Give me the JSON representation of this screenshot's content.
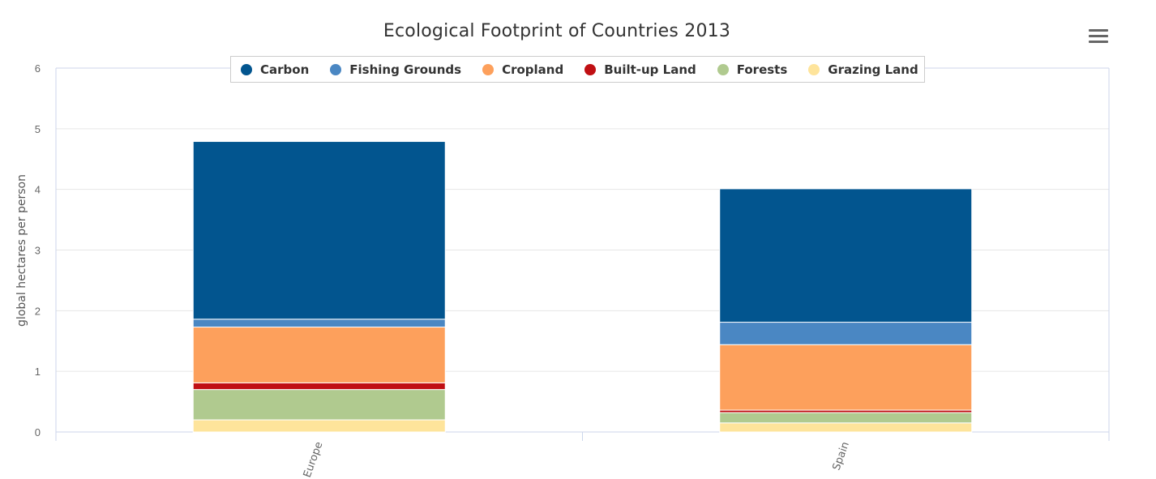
{
  "chart_data": {
    "type": "bar",
    "stacked": true,
    "title": "Ecological Footprint of Countries 2013",
    "xlabel": "",
    "ylabel": "global hectares per person",
    "ylim": [
      0,
      6
    ],
    "yticks": [
      "0",
      "1",
      "2",
      "3",
      "4",
      "5",
      "6"
    ],
    "categories": [
      "Europe",
      "Spain"
    ],
    "legend_position": "top",
    "series": [
      {
        "name": "Carbon",
        "color": "#02558f",
        "values": [
          2.93,
          2.2
        ]
      },
      {
        "name": "Fishing Grounds",
        "color": "#4a87c3",
        "values": [
          0.13,
          0.37
        ]
      },
      {
        "name": "Cropland",
        "color": "#fda05c",
        "values": [
          0.92,
          1.08
        ]
      },
      {
        "name": "Built-up Land",
        "color": "#c00f13",
        "values": [
          0.11,
          0.04
        ]
      },
      {
        "name": "Forests",
        "color": "#b0ca8f",
        "values": [
          0.5,
          0.17
        ]
      },
      {
        "name": "Grazing Land",
        "color": "#fee49b",
        "values": [
          0.2,
          0.15
        ]
      }
    ],
    "grid": true
  },
  "menu_icon": "hamburger-menu-icon"
}
